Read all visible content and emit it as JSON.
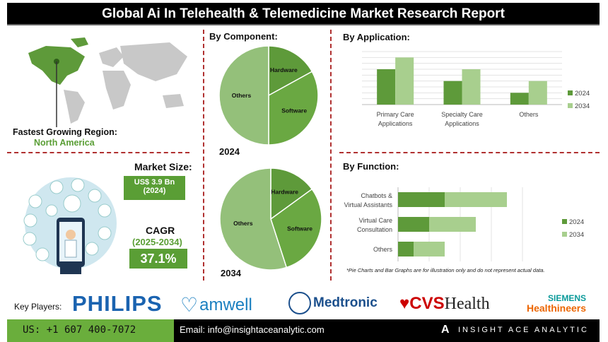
{
  "title": "Global Ai In Telehealth & Telemedicine Market Research Report",
  "region": {
    "label": "Fastest Growing Region:",
    "value": "North America"
  },
  "market_size": {
    "label": "Market Size:",
    "value_line1": "US$ 3.9 Bn",
    "value_line2": "(2024)"
  },
  "cagr": {
    "label": "CAGR",
    "period": "(2025-2034)",
    "value": "37.1%"
  },
  "colors": {
    "dark_green": "#5e9a3a",
    "light_green": "#a8cf8e",
    "mid_green": "#6aa842",
    "pie_others": "#94c07a",
    "divider": "#b03030"
  },
  "chart_data": [
    {
      "type": "pie",
      "title": "By Component:",
      "year": "2024",
      "labels": [
        "Hardware",
        "Software",
        "Others"
      ],
      "values": [
        17,
        33,
        50
      ]
    },
    {
      "type": "pie",
      "year": "2034",
      "labels": [
        "Hardware",
        "Software",
        "Others"
      ],
      "values": [
        15,
        30,
        55
      ]
    },
    {
      "type": "bar",
      "title": "By Application:",
      "categories": [
        "Primary Care Applications",
        "Specialty Care Applications",
        "Others"
      ],
      "category_lines": [
        [
          "Primary Care",
          "Applications"
        ],
        [
          "Specialty Care",
          "Applications"
        ],
        [
          "Others",
          ""
        ]
      ],
      "series": [
        {
          "name": "2024",
          "values": [
            6,
            4,
            2
          ]
        },
        {
          "name": "2034",
          "values": [
            8,
            6,
            4
          ]
        }
      ],
      "ylim": [
        0,
        9
      ],
      "grid": true,
      "legend": "right"
    },
    {
      "type": "bar",
      "orientation": "horizontal",
      "stacked": true,
      "title": "By Function:",
      "categories": [
        "Chatbots & Virtual Assistants",
        "Virtual Care Consultation",
        "Others"
      ],
      "category_lines": [
        [
          "Chatbots &",
          "Virtual Assistants"
        ],
        [
          "Virtual Care",
          "Consultation"
        ],
        [
          "Others",
          ""
        ]
      ],
      "series": [
        {
          "name": "2024",
          "values": [
            1.5,
            1,
            0.5
          ]
        },
        {
          "name": "2034",
          "values": [
            2,
            1.5,
            1
          ]
        }
      ],
      "xlim": [
        0,
        4
      ],
      "grid": true,
      "legend": "right"
    }
  ],
  "note": "*Pie Charts and Bar Graphs are for illustration only and do not represent actual data.",
  "key_players": {
    "label": "Key Players:",
    "logos": [
      "PHILIPS",
      "amwell",
      "Medtronic",
      "CVS",
      "Health",
      "SIEMENS",
      "Healthineers"
    ]
  },
  "footer": {
    "phone": "US: +1 607 400-7072",
    "email": "Email: info@insightaceanalytic.com",
    "brand": "INSIGHT ACE ANALYTIC"
  }
}
